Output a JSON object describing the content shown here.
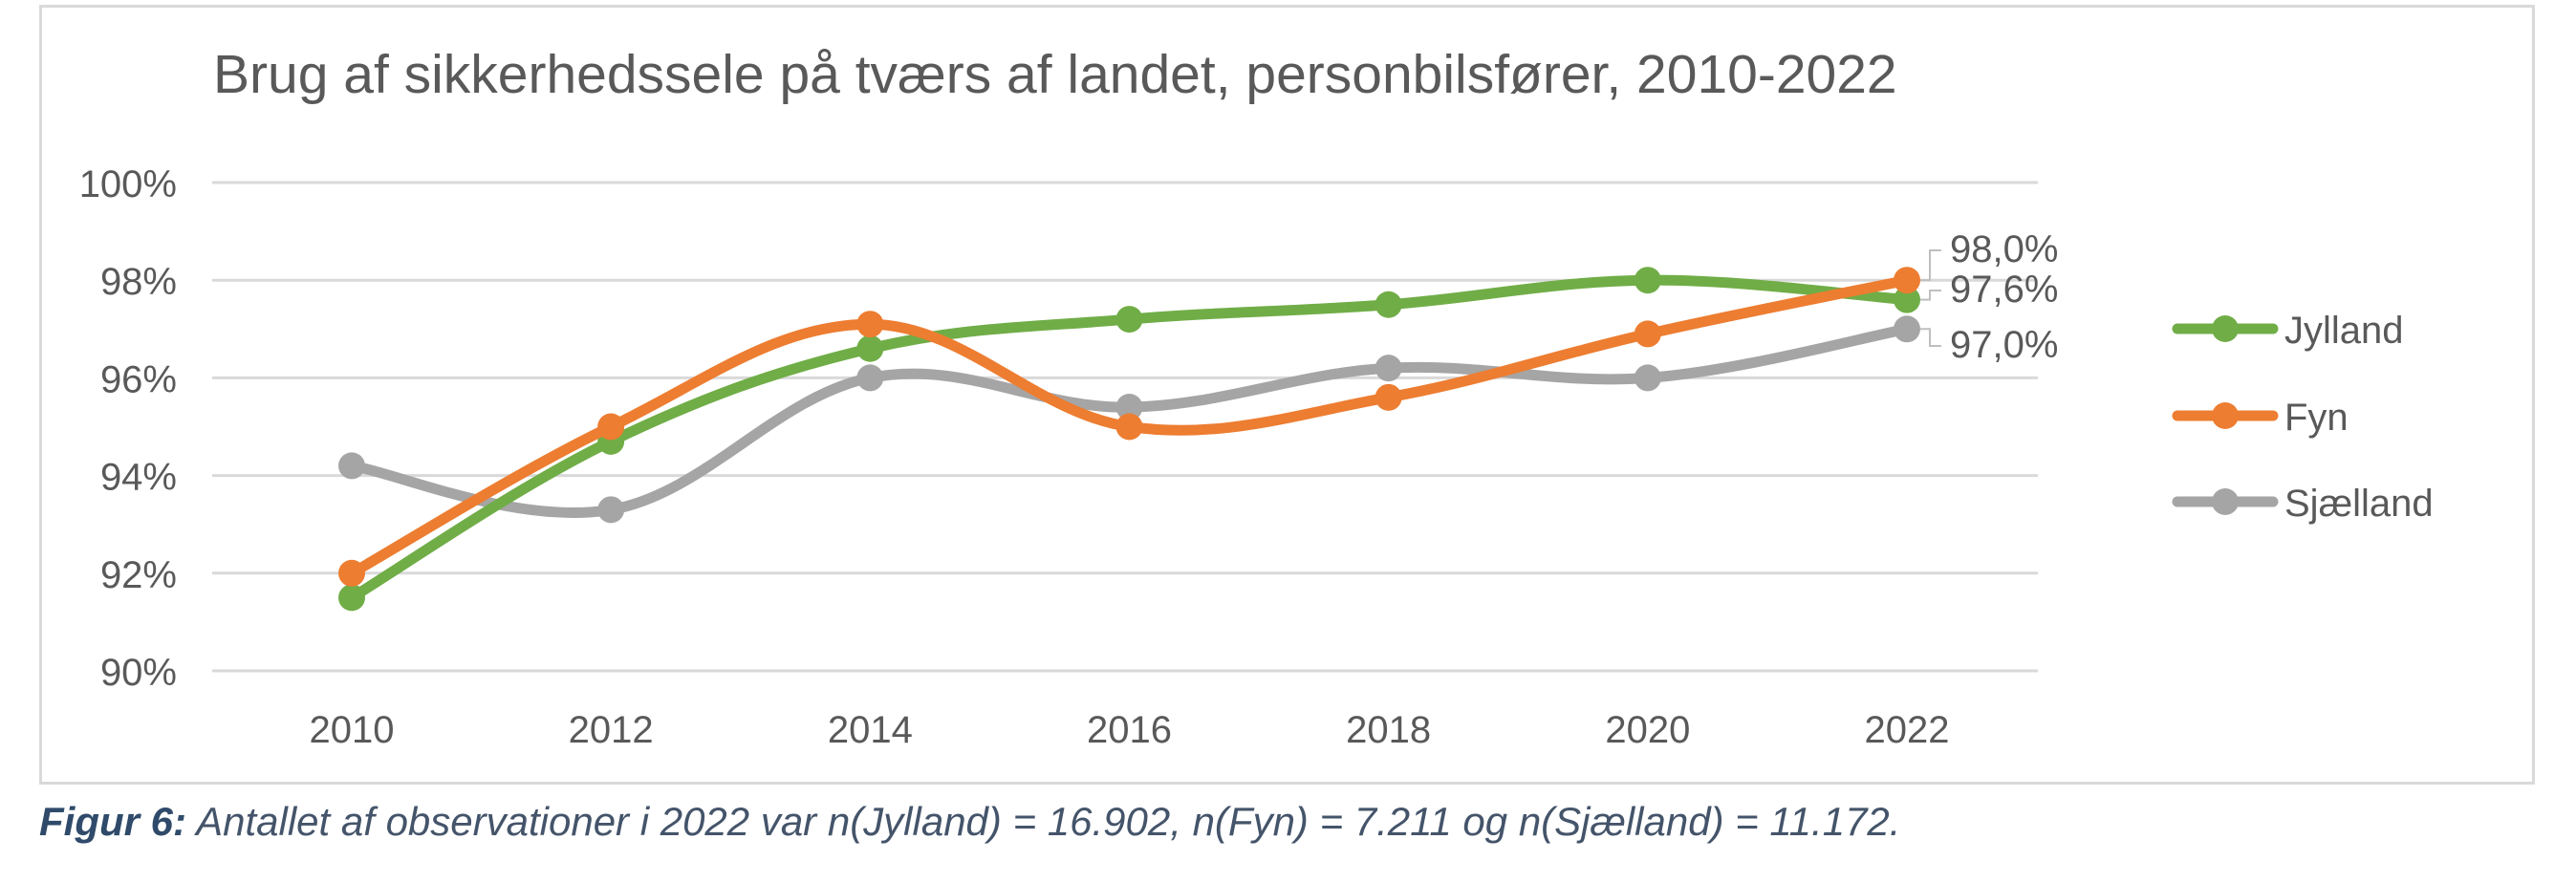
{
  "chart_data": {
    "type": "line",
    "title": "Brug af sikkerhedssele på tværs af landet, personbilsfører, 2010-2022",
    "xlabel": "",
    "ylabel": "",
    "x": [
      "2010",
      "2012",
      "2014",
      "2016",
      "2018",
      "2020",
      "2022"
    ],
    "ylim": [
      90,
      100
    ],
    "yticks": [
      90,
      92,
      94,
      96,
      98,
      100
    ],
    "ytick_labels": [
      "90%",
      "92%",
      "94%",
      "96%",
      "98%",
      "100%"
    ],
    "grid": true,
    "legend": "right",
    "smooth": true,
    "series": [
      {
        "name": "Jylland",
        "color": "#70ad47",
        "values": [
          91.5,
          94.7,
          96.6,
          97.2,
          97.5,
          98.0,
          97.6
        ]
      },
      {
        "name": "Fyn",
        "color": "#ed7d31",
        "values": [
          92.0,
          95.0,
          97.1,
          95.0,
          95.6,
          96.9,
          98.0
        ]
      },
      {
        "name": "Sjælland",
        "color": "#a5a5a5",
        "values": [
          94.2,
          93.3,
          96.0,
          95.4,
          96.2,
          96.0,
          97.0
        ]
      }
    ],
    "end_labels": [
      {
        "series": "Fyn",
        "text": "98,0%"
      },
      {
        "series": "Jylland",
        "text": "97,6%"
      },
      {
        "series": "Sjælland",
        "text": "97,0%"
      }
    ]
  },
  "caption": {
    "label": "Figur 6:",
    "text": " Antallet af observationer i 2022 var n(Jylland) = 16.902, n(Fyn) = 7.211 og n(Sjælland) = 11.172."
  }
}
